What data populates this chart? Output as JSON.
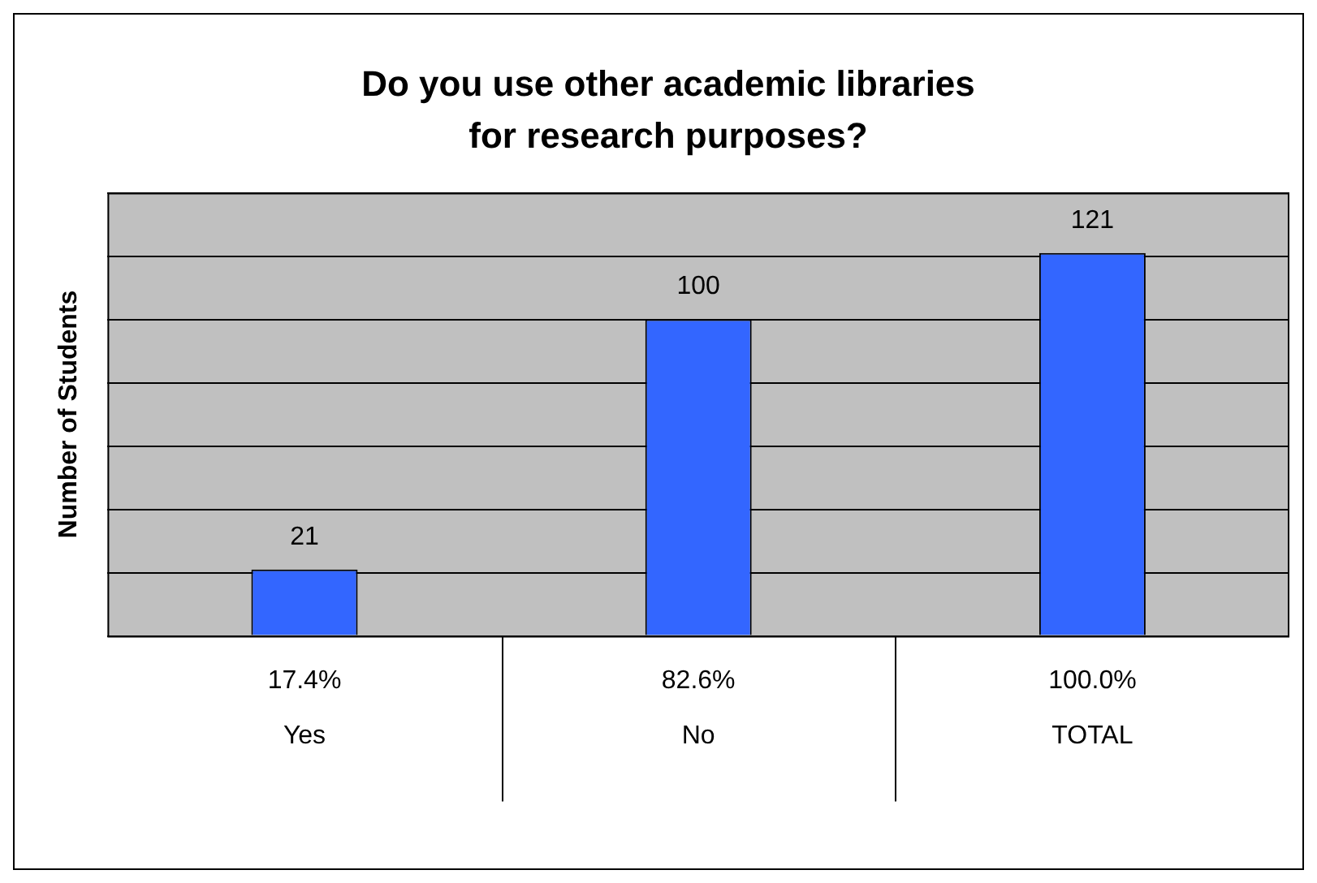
{
  "chart_data": {
    "type": "bar",
    "title": "Do you use other academic libraries for research purposes?",
    "ylabel": "Number of Students",
    "categories": [
      "Yes",
      "No",
      "TOTAL"
    ],
    "values": [
      21,
      100,
      121
    ],
    "color": "#3366ff",
    "tick_labels": "x",
    "grid": "y",
    "legend": false,
    "data_labels": true,
    "annotations": [
      "17.4%",
      "82.6%",
      "100.0%"
    ]
  }
}
